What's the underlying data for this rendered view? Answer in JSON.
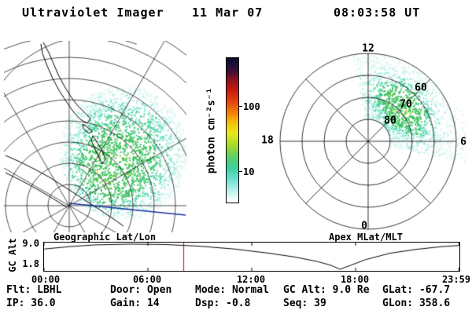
{
  "header": {
    "app_title": "Ultraviolet Imager",
    "date": "11 Mar 07",
    "time": "08:03:58 UT"
  },
  "colorbar": {
    "label": "photon cm⁻²s⁻¹",
    "tick_top": "100",
    "tick_bottom": "10"
  },
  "panel_labels": {
    "left": "Geographic Lat/Lon",
    "right": "Apex MLat/MLT"
  },
  "polar_labels": {
    "mlt_top": "12",
    "mlt_left": "18",
    "mlt_right": "6",
    "mlt_bottom": "0",
    "mlat_outer": "60",
    "mlat_mid": "70",
    "mlat_inner": "80"
  },
  "alt_axis": {
    "ylabel": "GC Alt",
    "ytick_top": "9.0",
    "ytick_bottom": "1.8",
    "xticks": [
      "00:00",
      "06:00",
      "12:00",
      "18:00",
      "23:59"
    ]
  },
  "status": {
    "row1": [
      "Flt: LBHL",
      "Door: Open",
      "Mode: Normal",
      "GC Alt: 9.0 Re",
      "GLat: -67.7"
    ],
    "row2": [
      "IP: 36.0",
      "Gain: 14",
      "Dsp: -0.8",
      "Seq: 39",
      "GLon: 358.6"
    ]
  },
  "palette": {
    "pale": "#ddf6f2",
    "cyan": "#96e8d8",
    "teal": "#4ed0a0",
    "green": "#3cc25d",
    "yellow": "#d8e84a",
    "grid": "#000000",
    "coast": "#000000",
    "orbit_line": "#1b2f9e",
    "marker_red": "#bb1111"
  },
  "chart_data": [
    {
      "type": "heatmap",
      "panel": "Geographic Lat/Lon",
      "quantity": "photon cm⁻²s⁻¹",
      "scale": "log",
      "colorbar_ticks": [
        10,
        100
      ],
      "colorbar_range_approx": [
        3,
        600
      ],
      "colorbar_stops": [
        {
          "pos": 0,
          "color": "#0b0b27"
        },
        {
          "pos": 5,
          "color": "#1c1040"
        },
        {
          "pos": 10,
          "color": "#4a0d33"
        },
        {
          "pos": 15,
          "color": "#8c1020"
        },
        {
          "pos": 22,
          "color": "#c41a10"
        },
        {
          "pos": 30,
          "color": "#e2430c"
        },
        {
          "pos": 38,
          "color": "#f28208"
        },
        {
          "pos": 45,
          "color": "#f5c20a"
        },
        {
          "pos": 52,
          "color": "#e8e81e"
        },
        {
          "pos": 60,
          "color": "#abdc28"
        },
        {
          "pos": 68,
          "color": "#62cf62"
        },
        {
          "pos": 76,
          "color": "#3ecf9f"
        },
        {
          "pos": 84,
          "color": "#6fdfd2"
        },
        {
          "pos": 91,
          "color": "#b5efe9"
        },
        {
          "pos": 97,
          "color": "#e9fbfa"
        },
        {
          "pos": 100,
          "color": "#ffffff"
        }
      ],
      "aurora": {
        "center_frac": [
          0.65,
          0.58
        ],
        "rx_frac": 0.35,
        "ry_frac": 0.35,
        "hotspot_local": [
          128,
          172
        ],
        "typical_intensity": 10,
        "peak_intensity": 40
      },
      "n_points": 2600,
      "seed": 42
    },
    {
      "type": "heatmap",
      "panel": "Apex MLat/MLT",
      "rings_mlat": [
        80,
        70,
        60,
        50
      ],
      "mlt_axis": [
        0,
        6,
        12,
        18
      ],
      "aurora": {
        "mlt_range": [
          5.2,
          12.7
        ],
        "mlat_range": [
          50,
          80
        ],
        "peak_mlt": 9,
        "peak_mlat": 68,
        "typical_intensity": 10,
        "peak_intensity": 40
      },
      "n_points": 1700,
      "seed": 7
    },
    {
      "type": "line",
      "panel": "GC Alt",
      "ylabel": "GC Alt",
      "units": "Re",
      "ylim": [
        1.8,
        9.0
      ],
      "yticks": [
        9.0,
        1.8
      ],
      "x_hours": [
        0,
        1.5,
        3,
        5,
        7,
        9,
        11,
        13,
        14.5,
        15.8,
        16.6,
        17.1,
        17.7,
        18.6,
        20,
        21.5,
        23,
        23.98
      ],
      "y_re": [
        7.6,
        8.3,
        8.8,
        9.0,
        8.9,
        8.4,
        7.6,
        6.4,
        5.3,
        4.0,
        2.9,
        1.8,
        2.9,
        4.6,
        6.4,
        7.5,
        8.3,
        8.6
      ],
      "xticks_hours": [
        0,
        6,
        12,
        18,
        23.98
      ],
      "xtick_labels": [
        "00:00",
        "06:00",
        "12:00",
        "18:00",
        "23:59"
      ],
      "current_time_hours": 8.07,
      "current_time_label": "08:03:58 UT"
    }
  ]
}
